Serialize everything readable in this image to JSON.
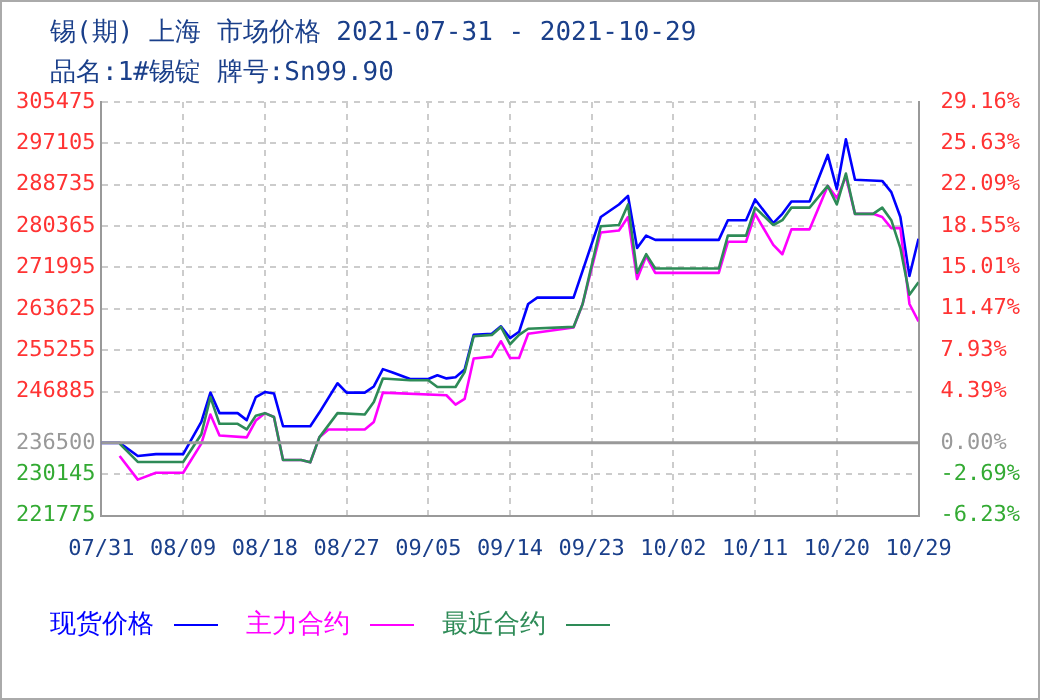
{
  "chart_data": {
    "type": "line",
    "title": "锡(期) 上海 市场价格 2021-07-31 - 2021-10-29",
    "subtitle": "品名:1#锡锭 牌号:Sn99.90",
    "xlim": [
      "2021-07-31",
      "2021-10-29"
    ],
    "xticks": [
      {
        "value": "2021-07-31",
        "label": "07/31"
      },
      {
        "value": "2021-08-09",
        "label": "08/09"
      },
      {
        "value": "2021-08-18",
        "label": "08/18"
      },
      {
        "value": "2021-08-27",
        "label": "08/27"
      },
      {
        "value": "2021-09-05",
        "label": "09/05"
      },
      {
        "value": "2021-09-14",
        "label": "09/14"
      },
      {
        "value": "2021-09-23",
        "label": "09/23"
      },
      {
        "value": "2021-10-02",
        "label": "10/02"
      },
      {
        "value": "2021-10-11",
        "label": "10/11"
      },
      {
        "value": "2021-10-20",
        "label": "10/20"
      },
      {
        "value": "2021-10-29",
        "label": "10/29"
      }
    ],
    "ylim": [
      221775,
      305475
    ],
    "yticks": [
      221775,
      230145,
      236500,
      246885,
      255255,
      263625,
      271995,
      280365,
      288735,
      297105,
      305475
    ],
    "y2lim": [
      -6.23,
      29.16
    ],
    "y2ticks": [
      {
        "value": -6.23,
        "label": "-6.23%"
      },
      {
        "value": -2.69,
        "label": "-2.69%"
      },
      {
        "value": 0,
        "label": "0.00%"
      },
      {
        "value": 4.39,
        "label": "4.39%"
      },
      {
        "value": 7.93,
        "label": "7.93%"
      },
      {
        "value": 11.47,
        "label": "11.47%"
      },
      {
        "value": 15.01,
        "label": "15.01%"
      },
      {
        "value": 18.55,
        "label": "18.55%"
      },
      {
        "value": 22.09,
        "label": "22.09%"
      },
      {
        "value": 25.63,
        "label": "25.63%"
      },
      {
        "value": 29.16,
        "label": "29.16%"
      }
    ],
    "ref_lines": [
      {
        "axis": "y",
        "value": 236500,
        "color": "#999999"
      }
    ],
    "grid": true,
    "legend": "bottom",
    "marker": "none",
    "line_style": "solid",
    "series": [
      {
        "name": "现货价格",
        "color": "#0000ff",
        "x": [
          "2021-07-31",
          "2021-08-02",
          "2021-08-04",
          "2021-08-06",
          "2021-08-09",
          "2021-08-11",
          "2021-08-12",
          "2021-08-13",
          "2021-08-15",
          "2021-08-16",
          "2021-08-17",
          "2021-08-18",
          "2021-08-19",
          "2021-08-20",
          "2021-08-23",
          "2021-08-24",
          "2021-08-26",
          "2021-08-27",
          "2021-08-29",
          "2021-08-30",
          "2021-08-31",
          "2021-09-01",
          "2021-09-03",
          "2021-09-05",
          "2021-09-06",
          "2021-09-07",
          "2021-09-08",
          "2021-09-09",
          "2021-09-10",
          "2021-09-12",
          "2021-09-13",
          "2021-09-14",
          "2021-09-15",
          "2021-09-16",
          "2021-09-17",
          "2021-09-21",
          "2021-09-24",
          "2021-09-26",
          "2021-09-27",
          "2021-09-28",
          "2021-09-29",
          "2021-09-30",
          "2021-10-07",
          "2021-10-08",
          "2021-10-10",
          "2021-10-11",
          "2021-10-13",
          "2021-10-14",
          "2021-10-15",
          "2021-10-17",
          "2021-10-19",
          "2021-10-20",
          "2021-10-21",
          "2021-10-22",
          "2021-10-25",
          "2021-10-26",
          "2021-10-27",
          "2021-10-28",
          "2021-10-29"
        ],
        "values": [
          236500,
          236500,
          233840,
          234220,
          234220,
          240740,
          246660,
          242510,
          242510,
          241100,
          245750,
          246770,
          246500,
          239860,
          239860,
          242620,
          248560,
          246660,
          246660,
          247910,
          251420,
          250800,
          249410,
          249410,
          250170,
          249540,
          249790,
          251320,
          258340,
          258590,
          260080,
          257700,
          258970,
          264600,
          265890,
          265890,
          282200,
          284740,
          286470,
          275920,
          278440,
          277570,
          277570,
          281560,
          281560,
          285750,
          280960,
          282840,
          285330,
          285330,
          294760,
          287860,
          297930,
          289750,
          289500,
          287240,
          282200,
          270260,
          277800
        ]
      },
      {
        "name": "主力合约",
        "color": "#ff00ff",
        "x": [
          "2021-08-02",
          "2021-08-04",
          "2021-08-06",
          "2021-08-09",
          "2021-08-11",
          "2021-08-12",
          "2021-08-13",
          "2021-08-16",
          "2021-08-17",
          "2021-08-18",
          "2021-08-19",
          "2021-08-20",
          "2021-08-22",
          "2021-08-23",
          "2021-08-24",
          "2021-08-25",
          "2021-08-29",
          "2021-08-30",
          "2021-08-31",
          "2021-09-07",
          "2021-09-08",
          "2021-09-09",
          "2021-09-10",
          "2021-09-12",
          "2021-09-13",
          "2021-09-14",
          "2021-09-15",
          "2021-09-16",
          "2021-09-21",
          "2021-09-22",
          "2021-09-24",
          "2021-09-26",
          "2021-09-27",
          "2021-09-28",
          "2021-09-29",
          "2021-09-30",
          "2021-10-07",
          "2021-10-08",
          "2021-10-10",
          "2021-10-11",
          "2021-10-13",
          "2021-10-14",
          "2021-10-15",
          "2021-10-17",
          "2021-10-19",
          "2021-10-20",
          "2021-10-21",
          "2021-10-22",
          "2021-10-24",
          "2021-10-25",
          "2021-10-26",
          "2021-10-27",
          "2021-10-28",
          "2021-10-29"
        ],
        "values": [
          233840,
          229050,
          230450,
          230450,
          236350,
          242240,
          238000,
          237610,
          241000,
          242510,
          241730,
          233030,
          233030,
          232560,
          237610,
          239210,
          239210,
          240740,
          246660,
          246130,
          244240,
          245380,
          253570,
          253940,
          257060,
          253670,
          253670,
          258570,
          259850,
          264600,
          279080,
          279460,
          282200,
          269640,
          274290,
          270900,
          270900,
          277190,
          277190,
          282840,
          276550,
          274670,
          279700,
          279700,
          288500,
          286020,
          290390,
          282840,
          282840,
          282200,
          279960,
          279960,
          264600,
          261100
        ]
      },
      {
        "name": "最近合约",
        "color": "#2e8b57",
        "x": [
          "2021-08-02",
          "2021-08-04",
          "2021-08-09",
          "2021-08-11",
          "2021-08-12",
          "2021-08-13",
          "2021-08-15",
          "2021-08-16",
          "2021-08-17",
          "2021-08-18",
          "2021-08-19",
          "2021-08-20",
          "2021-08-22",
          "2021-08-23",
          "2021-08-24",
          "2021-08-26",
          "2021-08-29",
          "2021-08-30",
          "2021-08-31",
          "2021-09-03",
          "2021-09-05",
          "2021-09-06",
          "2021-09-08",
          "2021-09-09",
          "2021-09-10",
          "2021-09-12",
          "2021-09-13",
          "2021-09-14",
          "2021-09-15",
          "2021-09-16",
          "2021-09-21",
          "2021-09-22",
          "2021-09-24",
          "2021-09-26",
          "2021-09-27",
          "2021-09-28",
          "2021-09-29",
          "2021-09-30",
          "2021-10-07",
          "2021-10-08",
          "2021-10-10",
          "2021-10-11",
          "2021-10-13",
          "2021-10-14",
          "2021-10-15",
          "2021-10-17",
          "2021-10-19",
          "2021-10-20",
          "2021-10-21",
          "2021-10-22",
          "2021-10-24",
          "2021-10-25",
          "2021-10-26",
          "2021-10-27",
          "2021-10-28",
          "2021-10-29"
        ],
        "values": [
          236350,
          232630,
          232630,
          238250,
          245750,
          240350,
          240350,
          239210,
          241980,
          242510,
          241730,
          233030,
          233030,
          232560,
          237610,
          242510,
          242250,
          244780,
          249530,
          249160,
          249160,
          247790,
          247790,
          250800,
          258080,
          258340,
          259960,
          256450,
          258340,
          259580,
          259960,
          264600,
          280330,
          280580,
          284740,
          270900,
          274670,
          271770,
          271770,
          278440,
          278440,
          284100,
          280580,
          281560,
          284100,
          284100,
          288500,
          284740,
          291000,
          282840,
          282840,
          284100,
          281560,
          275920,
          266490,
          269010
        ]
      }
    ]
  }
}
